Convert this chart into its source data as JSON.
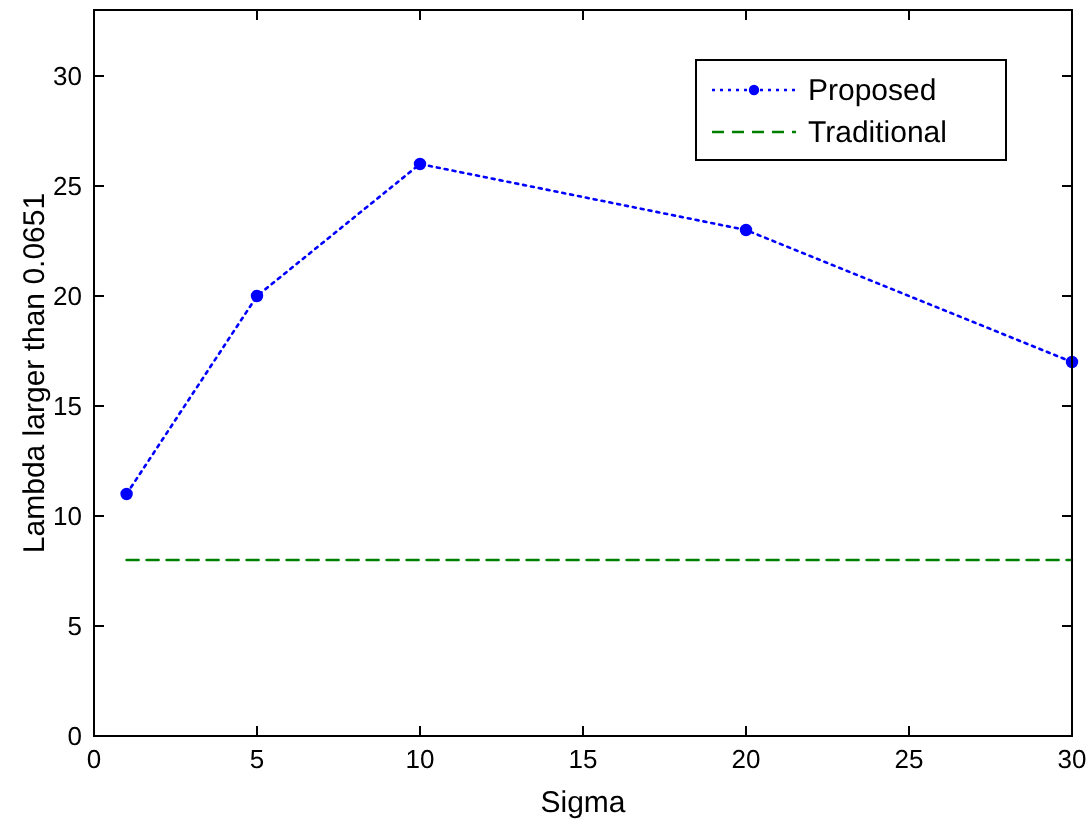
{
  "chart_data": {
    "type": "line",
    "xlabel": "Sigma",
    "ylabel": "Lambda larger than 0.0651",
    "x": [
      1,
      5,
      10,
      20,
      30
    ],
    "series": [
      {
        "name": "Proposed",
        "color": "#0000ff",
        "values": [
          11,
          20,
          26,
          23,
          17
        ],
        "marker": "circle",
        "line_style": "dotted"
      },
      {
        "name": "Traditional",
        "color": "#008000",
        "x": [
          1,
          30
        ],
        "values": [
          8,
          8
        ],
        "marker": "none",
        "line_style": "dashed"
      }
    ],
    "xlim": [
      0,
      30
    ],
    "xticks": [
      0,
      5,
      10,
      15,
      20,
      25,
      30
    ],
    "ylim": [
      0,
      33
    ],
    "yticks": [
      0,
      5,
      10,
      15,
      20,
      25,
      30
    ],
    "grid": false,
    "legend": "top right"
  }
}
